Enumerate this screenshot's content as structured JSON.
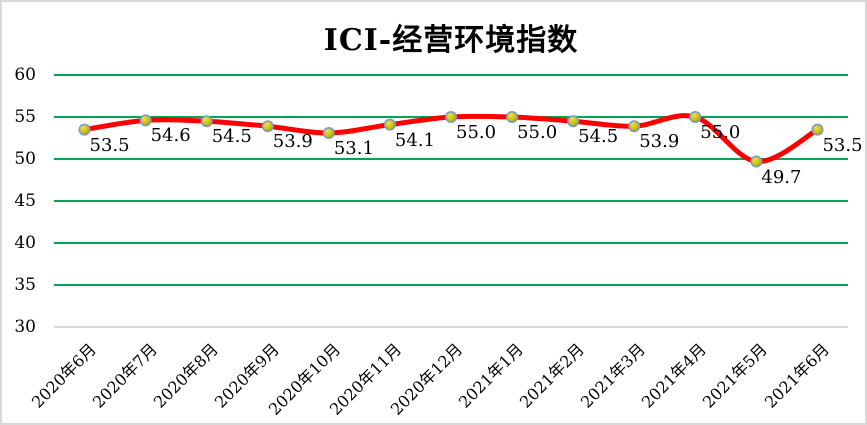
{
  "chart_data": {
    "type": "line",
    "title": "ICI-经营环境指数",
    "categories": [
      "2020年6月",
      "2020年7月",
      "2020年8月",
      "2020年9月",
      "2020年10月",
      "2020年11月",
      "2020年12月",
      "2021年1月",
      "2021年2月",
      "2021年3月",
      "2021年4月",
      "2021年5月",
      "2021年6月"
    ],
    "series": [
      {
        "name": "ICI-经营环境指数",
        "values": [
          53.5,
          54.6,
          54.5,
          53.9,
          53.1,
          54.1,
          55.0,
          55.0,
          54.5,
          53.9,
          55.0,
          49.7,
          53.5
        ]
      }
    ],
    "data_labels": [
      "53.5",
      "54.6",
      "54.5",
      "53.9",
      "53.1",
      "54.1",
      "55.0",
      "55.0",
      "54.5",
      "53.9",
      "55.0",
      "49.7",
      "53.5"
    ],
    "xlabel": "",
    "ylabel": "",
    "ylim": [
      30,
      60
    ],
    "yticks": [
      60,
      55,
      50,
      45,
      40,
      35,
      30
    ],
    "grid": "horizontal",
    "legend": "none",
    "smoothed": true,
    "marker": "circle",
    "colors": {
      "line": "#fe0000",
      "marker_fill_light": "#ebdf46",
      "marker_fill": "#d2c614",
      "marker_fill_dark": "#afa300",
      "marker_border": "#7d99c6",
      "gridline": "#00a651",
      "axis_line": "#d9d9d9",
      "text": "#000000",
      "background": "#ffffff",
      "chart_border": "#d9d9d9"
    }
  }
}
